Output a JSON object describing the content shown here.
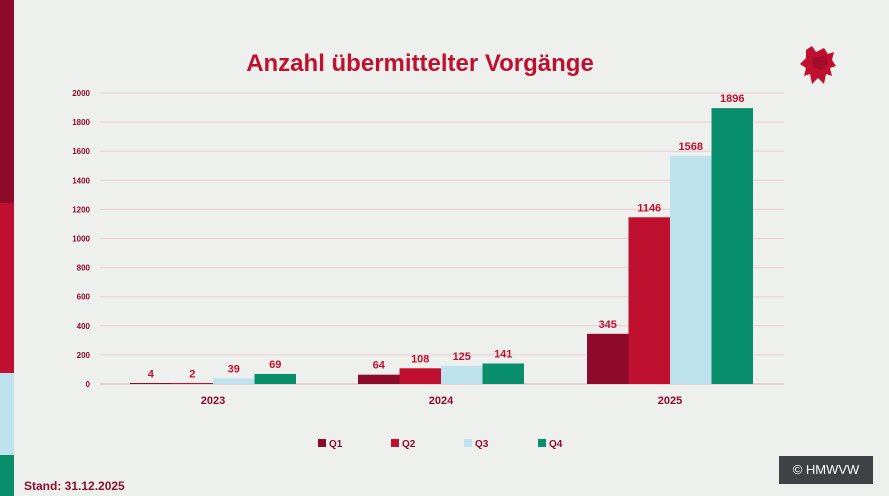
{
  "chart_data": {
    "type": "bar",
    "title": "Anzahl übermittelter Vorgänge",
    "categories": [
      "2023",
      "2024",
      "2025"
    ],
    "series": [
      {
        "name": "Q1",
        "values": [
          4,
          64,
          345
        ],
        "color": "#8e0a2a"
      },
      {
        "name": "Q2",
        "values": [
          2,
          108,
          1146
        ],
        "color": "#c0102f"
      },
      {
        "name": "Q3",
        "values": [
          39,
          125,
          1568
        ],
        "color": "#bfe2ef"
      },
      {
        "name": "Q4",
        "values": [
          69,
          141,
          1896
        ],
        "color": "#0a8f6c"
      }
    ],
    "ylim": [
      0,
      2000
    ],
    "yticks": [
      0,
      200,
      400,
      600,
      800,
      1000,
      1200,
      1400,
      1600,
      1800,
      2000
    ],
    "grid": true,
    "legend": "bottom-center",
    "label_color": "#c0102f"
  },
  "footer": {
    "stand": "Stand: 31.12.2025",
    "copyright": "© HMWVW"
  },
  "logo": {
    "icon": "lion-crest-icon"
  }
}
